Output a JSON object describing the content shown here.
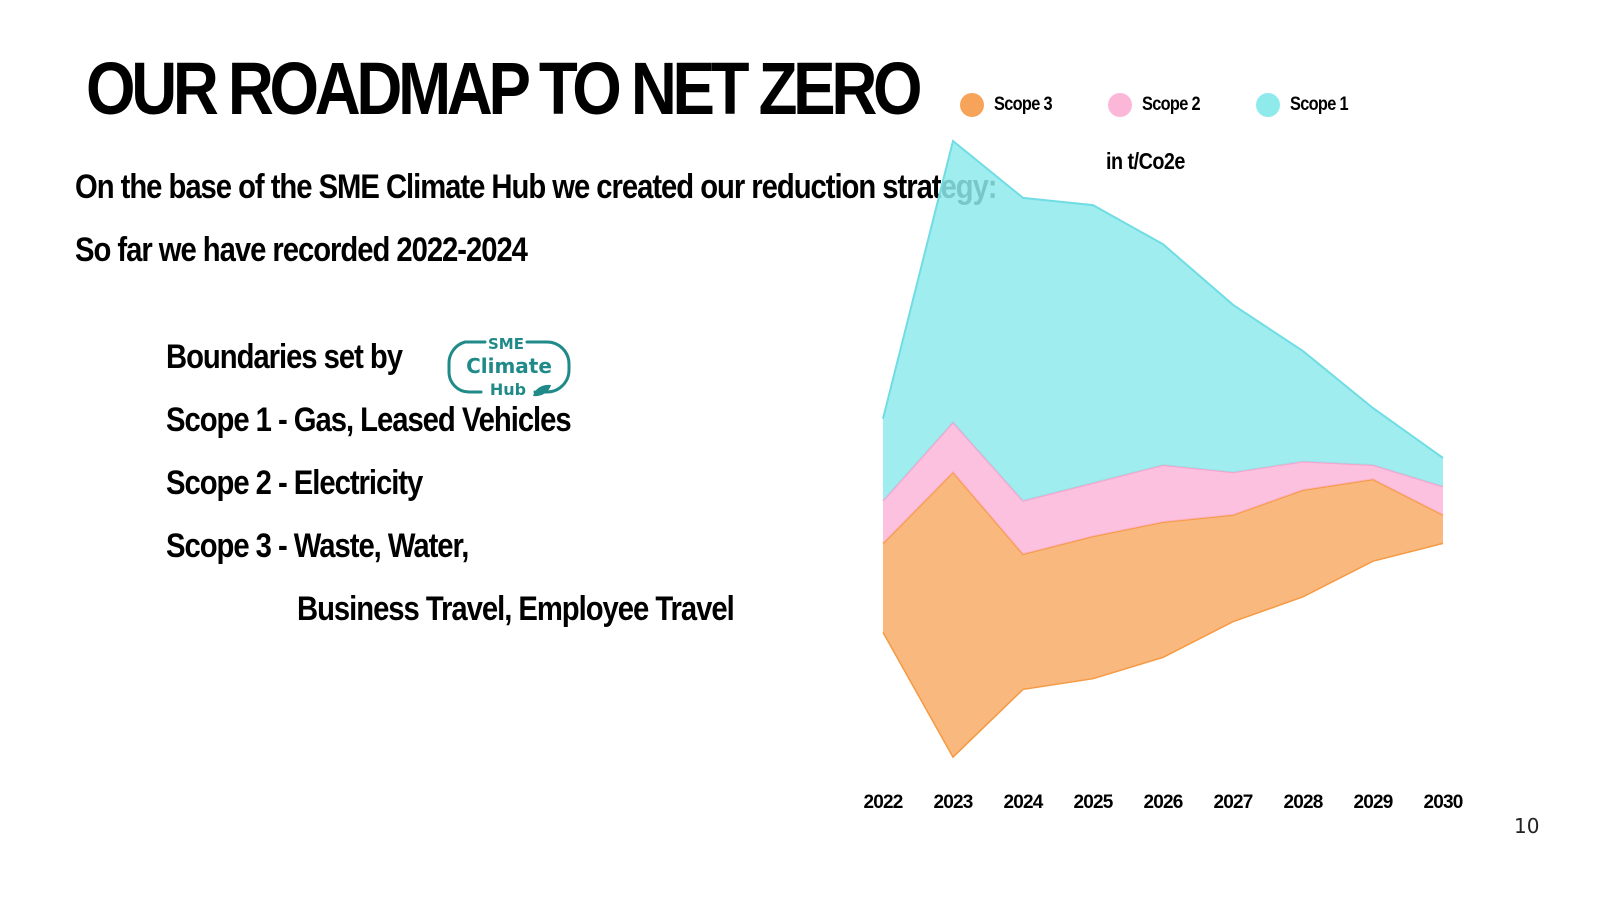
{
  "title": "OUR ROADMAP TO NET ZERO",
  "subtitle_lines": [
    "On the base of the SME Climate Hub we created our reduction strategy:",
    "So far we have recorded 2022-2024"
  ],
  "boundaries": {
    "label": "Boundaries set by",
    "logo_text": [
      "SME",
      "Climate",
      "Hub"
    ],
    "items": [
      "Scope 1 - Gas, Leased Vehicles",
      "Scope 2 - Electricity",
      "Scope 3 - Waste, Water,",
      "Business Travel,  Employee Travel"
    ]
  },
  "unit_label": "in t/Co2e",
  "page_number": "10",
  "colors": {
    "scope3": "#f7a45a",
    "scope2": "#fbb6d8",
    "scope1": "#8feaec",
    "scope3_line": "#f59a44",
    "scope2_line": "#f7a2cc",
    "scope1_line": "#6fdde3",
    "logo": "#1f8a88"
  },
  "legend": [
    {
      "label": "Scope 3",
      "color": "#f7a45a"
    },
    {
      "label": "Scope 2",
      "color": "#fbb6d8"
    },
    {
      "label": "Scope 1",
      "color": "#8feaec"
    }
  ],
  "chart_data": {
    "type": "area",
    "subtype": "streamgraph",
    "unit": "t/Co2e",
    "categories": [
      "2022",
      "2023",
      "2024",
      "2025",
      "2026",
      "2027",
      "2028",
      "2029",
      "2030"
    ],
    "baseline": [
      -25,
      -60,
      -41,
      -38,
      -32,
      -22,
      -15,
      -5,
      0
    ],
    "series": [
      {
        "name": "Scope 3",
        "values": [
          25,
          80,
          38,
          40,
          38,
          30,
          30,
          23,
          8
        ]
      },
      {
        "name": "Scope 2",
        "values": [
          12,
          14,
          15,
          15,
          16,
          12,
          8,
          4,
          8
        ]
      },
      {
        "name": "Scope 1",
        "values": [
          23,
          79,
          85,
          78,
          62,
          47,
          31,
          16,
          8
        ]
      }
    ],
    "ylim": [
      -67,
      88
    ],
    "ylabel": "in t/Co2e",
    "legend_position": "top"
  }
}
